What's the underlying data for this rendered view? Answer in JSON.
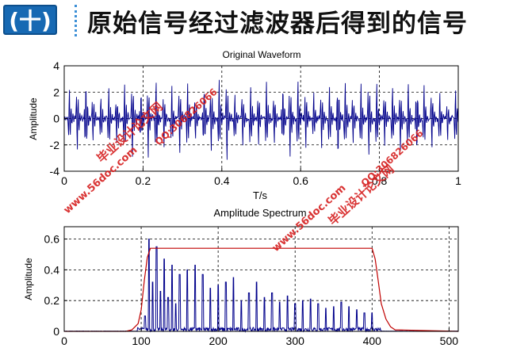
{
  "header": {
    "badge_text": "(十)",
    "title": "原始信号经过滤波器后得到的信号"
  },
  "chart_data": [
    {
      "type": "line",
      "title": "Original Waveform",
      "xlabel": "T/s",
      "ylabel": "Amplitude",
      "xlim": [
        0,
        1
      ],
      "ylim": [
        -4,
        4
      ],
      "xticks": [
        "0",
        "0.2",
        "0.4",
        "0.6",
        "0.8",
        "1"
      ],
      "yticks": [
        "-4",
        "-2",
        "0",
        "2",
        "4"
      ],
      "grid": "dotted",
      "series": [
        {
          "color": "#00008b",
          "x": [
            0.013,
            0.033,
            0.055,
            0.073,
            0.093,
            0.113,
            0.133,
            0.153,
            0.173,
            0.195,
            0.213,
            0.233,
            0.253,
            0.273,
            0.293,
            0.313,
            0.333,
            0.355,
            0.373,
            0.393,
            0.413,
            0.433,
            0.453,
            0.473,
            0.493,
            0.513,
            0.533,
            0.555,
            0.573,
            0.593,
            0.613,
            0.633,
            0.653,
            0.673,
            0.695,
            0.713,
            0.733,
            0.753,
            0.773,
            0.793,
            0.813,
            0.833,
            0.853,
            0.873,
            0.895,
            0.913,
            0.933,
            0.953,
            0.973,
            0.993
          ],
          "y": [
            2.5,
            -2.8,
            3.4,
            -2.2,
            2.0,
            3.0,
            -2.3,
            3.3,
            -3.7,
            2.4,
            -3.5,
            3.5,
            -2.6,
            2.8,
            -3.1,
            3.3,
            -2.0,
            2.9,
            -3.2,
            3.4,
            -3.9,
            2.2,
            -2.6,
            3.1,
            -2.3,
            3.3,
            -2.4,
            3.0,
            -3.4,
            3.3,
            -2.8,
            2.3,
            -2.6,
            2.9,
            -3.5,
            3.4,
            -2.3,
            3.0,
            -3.5,
            3.1,
            -2.4,
            3.0,
            -2.9,
            3.3,
            -3.0,
            3.1,
            -2.8,
            2.5,
            -1.8,
            2.6
          ]
        }
      ]
    },
    {
      "type": "line",
      "title": "Amplitude Spectrum",
      "xlabel": "",
      "ylabel": "Amplitude",
      "xlim": [
        0,
        512
      ],
      "ylim": [
        0,
        0.68
      ],
      "xticks": [
        "0",
        "100",
        "200",
        "300",
        "400",
        "500"
      ],
      "yticks": [
        "0",
        "0.2",
        "0.4",
        "0.6"
      ],
      "grid": "dotted",
      "series": [
        {
          "color": "#00008b",
          "x": [
            105,
            110,
            115,
            120,
            125,
            130,
            135,
            140,
            145,
            150,
            160,
            170,
            180,
            190,
            200,
            210,
            220,
            230,
            240,
            250,
            260,
            270,
            280,
            290,
            300,
            310,
            320,
            330,
            340,
            350,
            360,
            370,
            380,
            390,
            400
          ],
          "y": [
            0.1,
            0.6,
            0.32,
            0.55,
            0.26,
            0.47,
            0.22,
            0.43,
            0.18,
            0.37,
            0.4,
            0.43,
            0.37,
            0.28,
            0.3,
            0.32,
            0.35,
            0.2,
            0.25,
            0.32,
            0.22,
            0.25,
            0.19,
            0.23,
            0.18,
            0.2,
            0.21,
            0.18,
            0.15,
            0.16,
            0.19,
            0.16,
            0.14,
            0.12,
            0.12
          ]
        },
        {
          "color": "#c00000",
          "x": [
            0,
            80,
            88,
            96,
            100,
            104,
            108,
            112,
            400,
            404,
            408,
            412,
            418,
            424,
            430,
            512
          ],
          "y": [
            0,
            0,
            0.01,
            0.05,
            0.14,
            0.33,
            0.48,
            0.54,
            0.54,
            0.47,
            0.33,
            0.18,
            0.08,
            0.03,
            0.01,
            0
          ]
        }
      ]
    }
  ],
  "watermarks": [
    "毕业设计论文网",
    "QQ:306826066",
    "www.56doc.com"
  ]
}
